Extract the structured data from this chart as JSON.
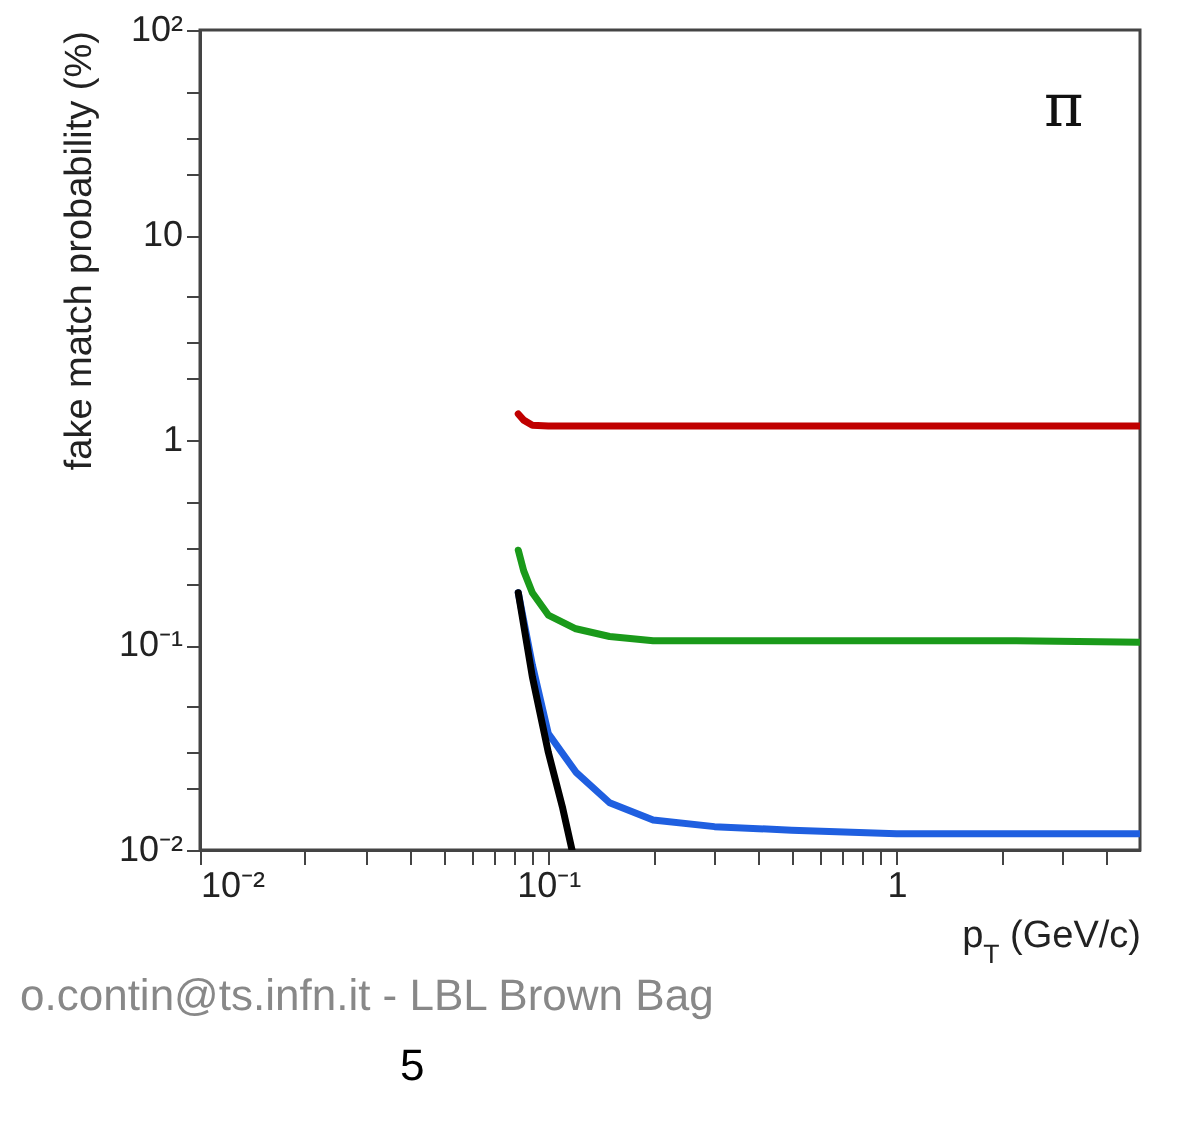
{
  "chart_data": {
    "type": "line",
    "ylabel": "fake match probability (%)",
    "xlabel": "p$_{T}$ (GeV/c)",
    "log": "xy",
    "grid": false,
    "marker": "none",
    "line_style": "solid",
    "xlim": [
      0.01,
      5
    ],
    "ylim": [
      0.01,
      100
    ],
    "xticks": [
      {
        "value": 0.01,
        "label": "10⁻²"
      },
      {
        "value": 0.02,
        "label": null
      },
      {
        "value": 0.03,
        "label": null
      },
      {
        "value": 0.04,
        "label": null
      },
      {
        "value": 0.05,
        "label": null
      },
      {
        "value": 0.06,
        "label": null
      },
      {
        "value": 0.07,
        "label": null
      },
      {
        "value": 0.08,
        "label": null
      },
      {
        "value": 0.09,
        "label": null
      },
      {
        "value": 0.1,
        "label": "10⁻¹"
      },
      {
        "value": 0.2,
        "label": null
      },
      {
        "value": 0.3,
        "label": null
      },
      {
        "value": 0.4,
        "label": null
      },
      {
        "value": 0.5,
        "label": null
      },
      {
        "value": 0.6,
        "label": null
      },
      {
        "value": 0.7,
        "label": null
      },
      {
        "value": 0.8,
        "label": null
      },
      {
        "value": 0.9,
        "label": null
      },
      1,
      {
        "value": 2,
        "label": null
      },
      {
        "value": 3,
        "label": null
      },
      {
        "value": 4,
        "label": null
      }
    ],
    "yticks": [
      {
        "value": 0.01,
        "label": "10⁻²"
      },
      {
        "value": 0.02,
        "label": null
      },
      {
        "value": 0.03,
        "label": null
      },
      {
        "value": 0.05,
        "label": null
      },
      {
        "value": 0.1,
        "label": "10⁻¹"
      },
      {
        "value": 0.2,
        "label": null
      },
      {
        "value": 0.3,
        "label": null
      },
      {
        "value": 0.5,
        "label": null
      },
      1,
      {
        "value": 2,
        "label": null
      },
      {
        "value": 3,
        "label": null
      },
      {
        "value": 5,
        "label": null
      },
      10,
      {
        "value": 20,
        "label": null
      },
      {
        "value": 30,
        "label": null
      },
      {
        "value": 50,
        "label": null
      },
      {
        "value": 100,
        "label": "10²"
      }
    ],
    "annotations": [
      "π",
      "o.contin@ts.infn.it - LBL Brown Bag",
      "5"
    ],
    "series": [
      {
        "color": "#c00000",
        "x": [
          0.082,
          0.085,
          0.09,
          0.1,
          0.2,
          0.5,
          1,
          2,
          5
        ],
        "values": [
          1.34,
          1.25,
          1.18,
          1.17,
          1.17,
          1.17,
          1.17,
          1.17,
          1.17
        ]
      },
      {
        "color": "#1a9a1a",
        "x": [
          0.082,
          0.085,
          0.09,
          0.1,
          0.12,
          0.15,
          0.2,
          0.5,
          1,
          2,
          5
        ],
        "values": [
          0.29,
          0.23,
          0.18,
          0.14,
          0.12,
          0.11,
          0.105,
          0.105,
          0.105,
          0.105,
          0.103
        ]
      },
      {
        "color": "#1f5fe0",
        "x": [
          0.082,
          0.09,
          0.1,
          0.12,
          0.15,
          0.2,
          0.3,
          0.5,
          1,
          2,
          5
        ],
        "values": [
          0.18,
          0.08,
          0.037,
          0.024,
          0.017,
          0.014,
          0.013,
          0.0125,
          0.012,
          0.012,
          0.012
        ]
      },
      {
        "color": "#000000",
        "x": [
          0.082,
          0.09,
          0.1,
          0.11,
          0.117
        ],
        "values": [
          0.18,
          0.07,
          0.03,
          0.016,
          0.01
        ]
      }
    ]
  }
}
